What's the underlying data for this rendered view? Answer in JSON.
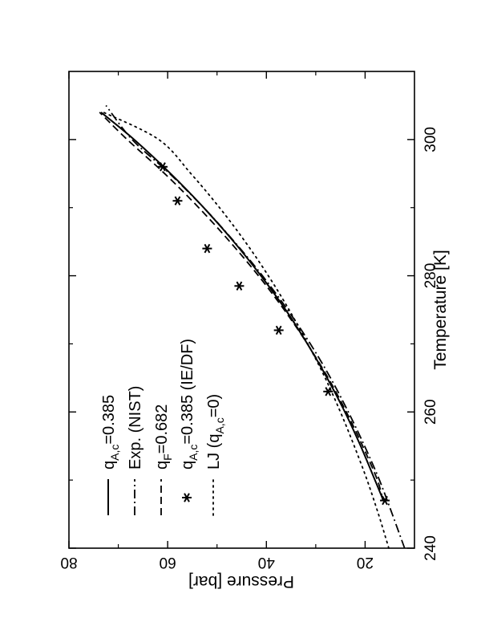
{
  "chart_data": {
    "type": "line",
    "xlabel": "Temperature [K]",
    "ylabel": "Pressure [bar]",
    "xlim": [
      240,
      310
    ],
    "ylim": [
      10,
      80
    ],
    "xticks": [
      240,
      260,
      280,
      300
    ],
    "yticks": [
      20,
      40,
      60,
      80
    ],
    "x_minor_ticks": [
      250,
      270,
      290
    ],
    "y_minor_ticks": [
      30,
      50,
      70
    ],
    "orientation": "rotated 90 degrees counter-clockwise",
    "grid": false,
    "legend_position": "upper-left (rotated)",
    "series": [
      {
        "key": "qac",
        "name": "q",
        "name_sub": "A,c",
        "name_tail": "=0.385",
        "style": "solid",
        "x": [
          247,
          250,
          255,
          260,
          265,
          270,
          275,
          280,
          285,
          290,
          295,
          300,
          304
        ],
        "y": [
          16.3,
          18.0,
          20.9,
          24.1,
          27.7,
          31.7,
          36.1,
          41.1,
          46.6,
          52.7,
          59.4,
          66.8,
          73.5
        ]
      },
      {
        "key": "exp",
        "name": "Exp. (NIST)",
        "style": "dashdot",
        "x": [
          240,
          245,
          250,
          255,
          260,
          265,
          270,
          275,
          280,
          285,
          290,
          295,
          300,
          305
        ],
        "y": [
          12.0,
          14.5,
          17.1,
          20.1,
          23.4,
          27.0,
          31.1,
          35.7,
          40.8,
          46.5,
          52.7,
          59.6,
          67.2,
          72.5
        ]
      },
      {
        "key": "qf",
        "name": "q",
        "name_sub": "F",
        "name_tail": "=0.682",
        "style": "dashed",
        "x": [
          247,
          250,
          255,
          260,
          265,
          270,
          275,
          280,
          285,
          290,
          295,
          300,
          304
        ],
        "y": [
          16.4,
          17.5,
          20.5,
          23.8,
          27.5,
          31.7,
          36.4,
          41.6,
          47.4,
          53.7,
          60.6,
          68.2,
          73.8
        ]
      },
      {
        "key": "ie",
        "name": "q",
        "name_sub": "A,c",
        "name_tail": "=0.385 (IE/DF)",
        "style": "markers",
        "x": [
          247,
          263,
          272,
          278.5,
          284,
          291,
          296
        ],
        "y": [
          16.0,
          27.5,
          37.5,
          45.5,
          52.0,
          58.0,
          61.0
        ]
      },
      {
        "key": "lj",
        "name": "LJ (q",
        "name_sub": "A,c",
        "name_tail": "=0)",
        "style": "dotted",
        "x": [
          240,
          245,
          250,
          255,
          260,
          265,
          270,
          275,
          280,
          285,
          290,
          295,
          300,
          304
        ],
        "y": [
          15.2,
          17.3,
          19.6,
          22.2,
          25.0,
          28.1,
          31.6,
          35.4,
          39.6,
          44.3,
          49.5,
          55.3,
          61.8,
          73.0
        ]
      }
    ]
  }
}
